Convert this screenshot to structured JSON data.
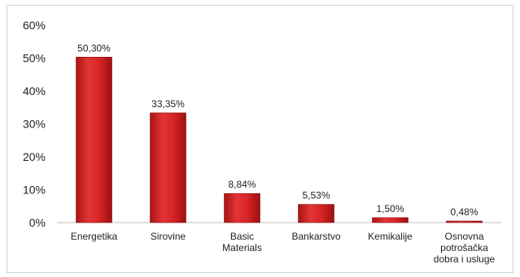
{
  "chart_data": {
    "type": "bar",
    "categories": [
      [
        "Energetika"
      ],
      [
        "Sirovine"
      ],
      [
        "Basic",
        "Materials"
      ],
      [
        "Bankarstvo"
      ],
      [
        "Kemikalije"
      ],
      [
        "Osnovna",
        "potrošačka",
        "dobra i usluge"
      ]
    ],
    "values": [
      50.3,
      33.35,
      8.84,
      5.53,
      1.5,
      0.48
    ],
    "data_labels": [
      "50,30%",
      "33,35%",
      "8,84%",
      "5,53%",
      "1,50%",
      "0,48%"
    ],
    "yticks": [
      "0%",
      "10%",
      "20%",
      "30%",
      "40%",
      "50%",
      "60%"
    ],
    "ylim": [
      0,
      60
    ],
    "title": "",
    "xlabel": "",
    "ylabel": "",
    "grid": false,
    "legend": "none",
    "bar_color": "#cc1f1f",
    "bar_edge_color": "#8e1010"
  }
}
